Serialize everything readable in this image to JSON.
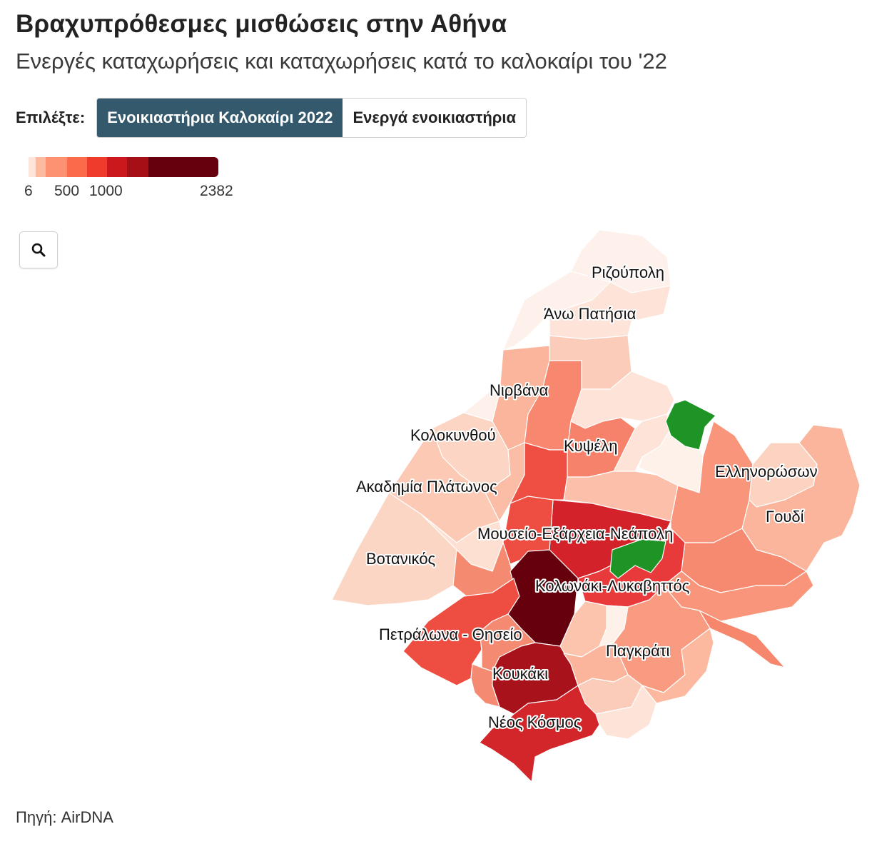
{
  "header": {
    "title": "Βραχυπρόθεσμες μισθώσεις στην Αθήνα",
    "subtitle": "Ενεργές καταχωρήσεις και καταχωρήσεις κατά το καλοκαίρι του '22"
  },
  "selector": {
    "label": "Επιλέξτε:",
    "options": [
      {
        "label": "Ενοικιαστήρια Καλοκαίρι 2022",
        "active": true
      },
      {
        "label": "Ενεργά ενοικιαστήρια",
        "active": false
      }
    ]
  },
  "legend": {
    "ticks": [
      "6",
      "500",
      "1000",
      "2382"
    ],
    "colors": [
      "#fee5d9",
      "#fcbba1",
      "#fc9272",
      "#fb6a4a",
      "#ef3b2c",
      "#cb181d",
      "#a50f15",
      "#67000d"
    ]
  },
  "search": {
    "icon": "search-icon"
  },
  "map": {
    "type": "choropleth",
    "city": "Αθήνα",
    "no_data_color": "#1f9426",
    "neighbourhoods": [
      {
        "name": "Ριζούπολη",
        "color": "#fef0ea"
      },
      {
        "name": "Άνω Πατήσια",
        "color": "#fde3d8"
      },
      {
        "name": "Νιρβάνα",
        "color": "#fbb59c"
      },
      {
        "name": "Κολοκυνθού",
        "color": "#fdd5c4"
      },
      {
        "name": "Κυψέλη",
        "color": "#f7826b"
      },
      {
        "name": "Ακαδημία Πλάτωνος",
        "color": "#fcc9b4"
      },
      {
        "name": "Ελληνορώσων",
        "color": "#f8957a"
      },
      {
        "name": "Γουδί",
        "color": "#fbb59c"
      },
      {
        "name": "Μουσείο-Εξάρχεια-Νεάπολη",
        "color": "#d3222a"
      },
      {
        "name": "Βοτανικός",
        "color": "#fcd2c0"
      },
      {
        "name": "Κολωνάκι-Λυκαβηττός",
        "color": "#e8393b"
      },
      {
        "name": "Πετράλωνα - Θησείο",
        "color": "#ee4e41"
      },
      {
        "name": "Παγκράτι",
        "color": "#f99b80"
      },
      {
        "name": "Κουκάκι",
        "color": "#a8121b"
      },
      {
        "name": "Νέος Κόσμος",
        "color": "#d2262b"
      }
    ]
  },
  "footer": {
    "source": "Πηγή: AirDNA"
  }
}
